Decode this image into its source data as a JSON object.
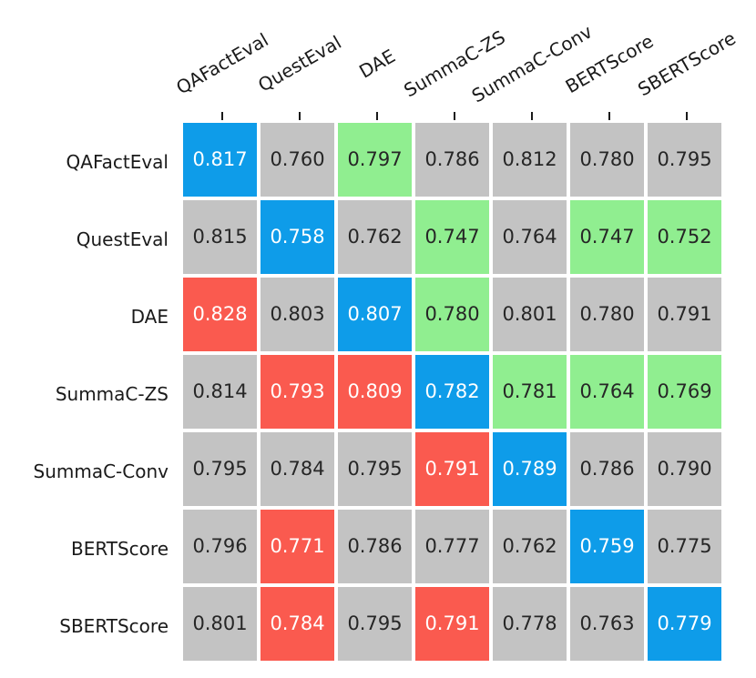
{
  "chart_data": {
    "type": "heatmap",
    "title": "",
    "xlabel": "",
    "ylabel": "",
    "legend": "none",
    "grid": "off",
    "rows": [
      "QAFactEval",
      "QuestEval",
      "DAE",
      "SummaC-ZS",
      "SummaC-Conv",
      "BERTScore",
      "SBERTScore"
    ],
    "columns": [
      "QAFactEval",
      "QuestEval",
      "DAE",
      "SummaC-ZS",
      "SummaC-Conv",
      "BERTScore",
      "SBERTScore"
    ],
    "values": [
      [
        0.817,
        0.76,
        0.797,
        0.786,
        0.812,
        0.78,
        0.795
      ],
      [
        0.815,
        0.758,
        0.762,
        0.747,
        0.764,
        0.747,
        0.752
      ],
      [
        0.828,
        0.803,
        0.807,
        0.78,
        0.801,
        0.78,
        0.791
      ],
      [
        0.814,
        0.793,
        0.809,
        0.782,
        0.781,
        0.764,
        0.769
      ],
      [
        0.795,
        0.784,
        0.795,
        0.791,
        0.789,
        0.786,
        0.79
      ],
      [
        0.796,
        0.771,
        0.786,
        0.777,
        0.762,
        0.759,
        0.775
      ],
      [
        0.801,
        0.784,
        0.795,
        0.791,
        0.778,
        0.763,
        0.779
      ]
    ],
    "cell_colors": [
      [
        "blue",
        "gray",
        "green",
        "gray",
        "gray",
        "gray",
        "gray"
      ],
      [
        "gray",
        "blue",
        "gray",
        "green",
        "gray",
        "green",
        "green"
      ],
      [
        "red",
        "gray",
        "blue",
        "green",
        "gray",
        "gray",
        "gray"
      ],
      [
        "gray",
        "red",
        "red",
        "blue",
        "green",
        "green",
        "green"
      ],
      [
        "gray",
        "gray",
        "gray",
        "red",
        "blue",
        "gray",
        "gray"
      ],
      [
        "gray",
        "red",
        "gray",
        "gray",
        "gray",
        "blue",
        "gray"
      ],
      [
        "gray",
        "red",
        "gray",
        "red",
        "gray",
        "gray",
        "blue"
      ]
    ],
    "value_decimals": 3,
    "palette": {
      "blue": "#0e9ce9",
      "red": "#fa5a4f",
      "green": "#90ee90",
      "gray": "#c3c3c3"
    },
    "text_colors": {
      "blue": "#ffffff",
      "red": "#ffffff",
      "green": "#262626",
      "gray": "#262626"
    },
    "label_color": "#1a1a1a",
    "diagonal_color": "blue"
  }
}
